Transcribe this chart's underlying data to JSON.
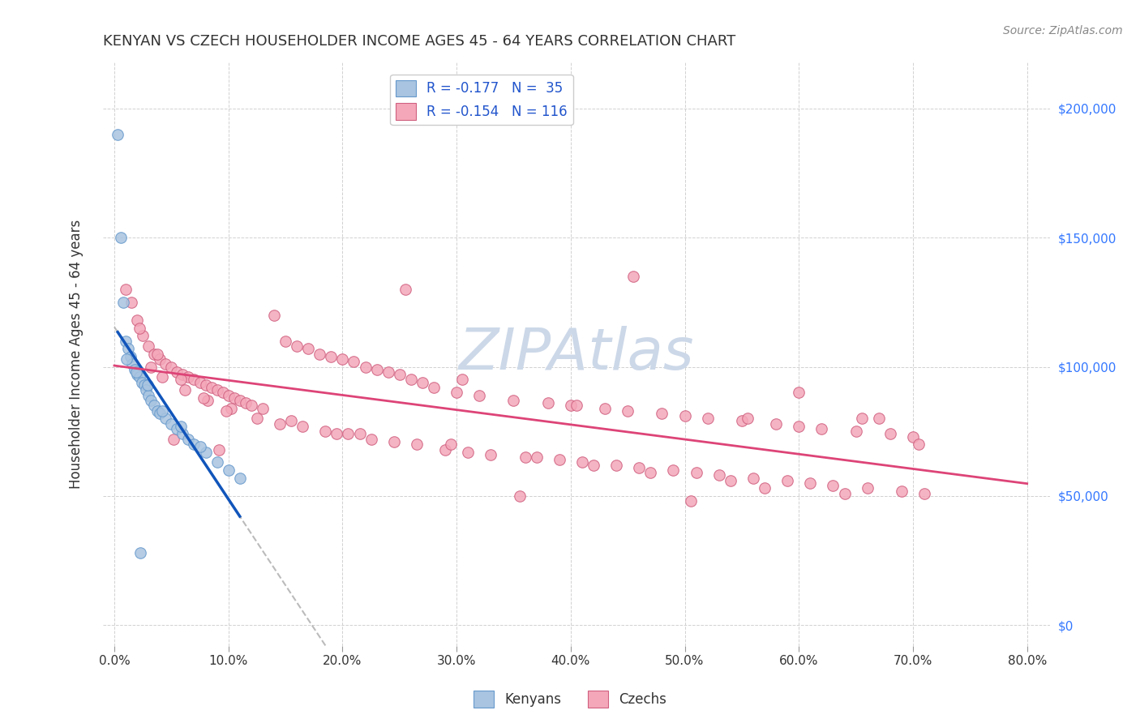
{
  "title": "KENYAN VS CZECH HOUSEHOLDER INCOME AGES 45 - 64 YEARS CORRELATION CHART",
  "source": "Source: ZipAtlas.com",
  "ylabel": "Householder Income Ages 45 - 64 years",
  "xlabel_vals": [
    0.0,
    10.0,
    20.0,
    30.0,
    40.0,
    50.0,
    60.0,
    70.0,
    80.0
  ],
  "ytick_vals": [
    0,
    50000,
    100000,
    150000,
    200000
  ],
  "ytick_labels": [
    "$0",
    "$50,000",
    "$100,000",
    "$150,000",
    "$200,000"
  ],
  "xmin": -1,
  "xmax": 82,
  "ymin": -8000,
  "ymax": 218000,
  "kenyan_color": "#a8c4e0",
  "czech_color": "#f4a7b9",
  "kenyan_edge": "#6699cc",
  "czech_edge": "#d06080",
  "legend_r1": "R = -0.177   N =  35",
  "legend_r2": "R = -0.154   N = 116",
  "kenyan_x": [
    0.3,
    0.6,
    0.8,
    1.0,
    1.2,
    1.4,
    1.6,
    1.8,
    2.0,
    2.2,
    2.4,
    2.6,
    2.8,
    3.0,
    3.2,
    3.5,
    3.8,
    4.0,
    4.5,
    5.0,
    5.5,
    6.0,
    6.5,
    7.0,
    8.0,
    9.0,
    10.0,
    11.0,
    1.1,
    1.9,
    2.9,
    4.2,
    5.8,
    2.3,
    7.5
  ],
  "kenyan_y": [
    190000,
    150000,
    125000,
    110000,
    107000,
    104000,
    101000,
    99000,
    97000,
    96000,
    94000,
    93000,
    91000,
    89000,
    87000,
    85000,
    83000,
    82000,
    80000,
    78000,
    76000,
    74000,
    72000,
    70000,
    67000,
    63000,
    60000,
    57000,
    103000,
    98000,
    93000,
    83000,
    77000,
    28000,
    69000
  ],
  "czech_x": [
    1.0,
    1.5,
    2.0,
    2.5,
    3.0,
    3.5,
    4.0,
    4.5,
    5.0,
    5.5,
    6.0,
    6.5,
    7.0,
    7.5,
    8.0,
    8.5,
    9.0,
    9.5,
    10.0,
    10.5,
    11.0,
    11.5,
    12.0,
    13.0,
    14.0,
    15.0,
    16.0,
    17.0,
    18.0,
    19.0,
    20.0,
    21.0,
    22.0,
    23.0,
    24.0,
    25.0,
    26.0,
    27.0,
    28.0,
    30.0,
    32.0,
    35.0,
    38.0,
    40.0,
    43.0,
    45.0,
    48.0,
    50.0,
    52.0,
    55.0,
    58.0,
    60.0,
    62.0,
    65.0,
    68.0,
    70.0,
    2.2,
    3.2,
    4.2,
    6.2,
    8.2,
    10.2,
    12.5,
    14.5,
    16.5,
    18.5,
    20.5,
    22.5,
    24.5,
    26.5,
    29.0,
    31.0,
    33.0,
    36.0,
    39.0,
    41.0,
    44.0,
    46.0,
    49.0,
    51.0,
    53.0,
    56.0,
    59.0,
    61.0,
    63.0,
    66.0,
    69.0,
    71.0,
    3.8,
    5.8,
    7.8,
    9.8,
    15.5,
    21.5,
    29.5,
    37.0,
    42.0,
    47.0,
    54.0,
    57.0,
    64.0,
    67.0,
    5.2,
    9.2,
    19.5,
    35.5,
    60.0,
    50.5,
    65.5,
    70.5,
    25.5,
    45.5,
    55.5,
    30.5,
    40.5
  ],
  "czech_y": [
    130000,
    125000,
    118000,
    112000,
    108000,
    105000,
    103000,
    101000,
    100000,
    98000,
    97000,
    96000,
    95000,
    94000,
    93000,
    92000,
    91000,
    90000,
    89000,
    88000,
    87000,
    86000,
    85000,
    84000,
    120000,
    110000,
    108000,
    107000,
    105000,
    104000,
    103000,
    102000,
    100000,
    99000,
    98000,
    97000,
    95000,
    94000,
    92000,
    90000,
    89000,
    87000,
    86000,
    85000,
    84000,
    83000,
    82000,
    81000,
    80000,
    79000,
    78000,
    77000,
    76000,
    75000,
    74000,
    73000,
    115000,
    100000,
    96000,
    91000,
    87000,
    84000,
    80000,
    78000,
    77000,
    75000,
    74000,
    72000,
    71000,
    70000,
    68000,
    67000,
    66000,
    65000,
    64000,
    63000,
    62000,
    61000,
    60000,
    59000,
    58000,
    57000,
    56000,
    55000,
    54000,
    53000,
    52000,
    51000,
    105000,
    95000,
    88000,
    83000,
    79000,
    74000,
    70000,
    65000,
    62000,
    59000,
    56000,
    53000,
    51000,
    80000,
    72000,
    68000,
    74000,
    50000,
    90000,
    48000,
    80000,
    70000,
    130000,
    135000,
    80000,
    95000,
    85000
  ],
  "background_color": "#ffffff",
  "grid_color": "#cccccc",
  "title_color": "#333333",
  "axis_label_color": "#333333",
  "ytick_right_color": "#3377ff",
  "watermark": "ZIPAtlas",
  "watermark_color": "#ccd8e8",
  "kenyan_trendline_color": "#1155bb",
  "czech_trendline_color": "#dd4477",
  "dashed_line_color": "#aaaaaa",
  "marker_size": 95
}
